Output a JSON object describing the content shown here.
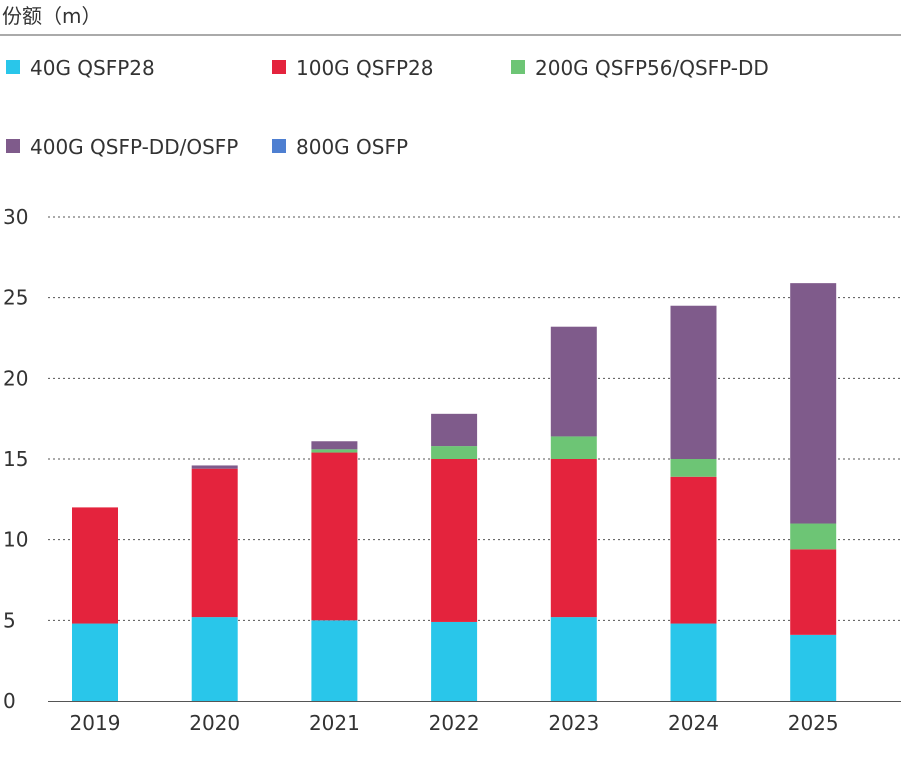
{
  "chart_data": {
    "type": "bar",
    "stacked": true,
    "unit_title": "份额（m）",
    "categories": [
      "2019",
      "2020",
      "2021",
      "2022",
      "2023",
      "2024",
      "2025"
    ],
    "series": [
      {
        "name": "40G QSFP28",
        "color": "#29c6ea",
        "values": [
          4.8,
          5.2,
          5.0,
          4.9,
          5.2,
          4.8,
          4.1
        ]
      },
      {
        "name": "100G QSFP28",
        "color": "#e4233d",
        "values": [
          7.2,
          9.2,
          10.4,
          10.1,
          9.8,
          9.1,
          5.3
        ]
      },
      {
        "name": "200G QSFP56/QSFP-DD",
        "color": "#6dc575",
        "values": [
          0,
          0,
          0.2,
          0.8,
          1.4,
          1.1,
          1.6
        ]
      },
      {
        "name": "400G QSFP-DD/OSFP",
        "color": "#7f5b8b",
        "values": [
          0,
          0.2,
          0.5,
          2.0,
          6.8,
          9.5,
          14.9
        ]
      },
      {
        "name": "800G OSFP",
        "color": "#4e7fd1",
        "values": [
          0,
          0,
          0,
          0,
          0,
          0,
          0
        ]
      }
    ],
    "ylim": [
      0,
      30
    ],
    "yticks": [
      "0",
      "5",
      "10",
      "15",
      "20",
      "25",
      "30"
    ],
    "grid": "dotted-horizontal",
    "legend_position": "top"
  }
}
